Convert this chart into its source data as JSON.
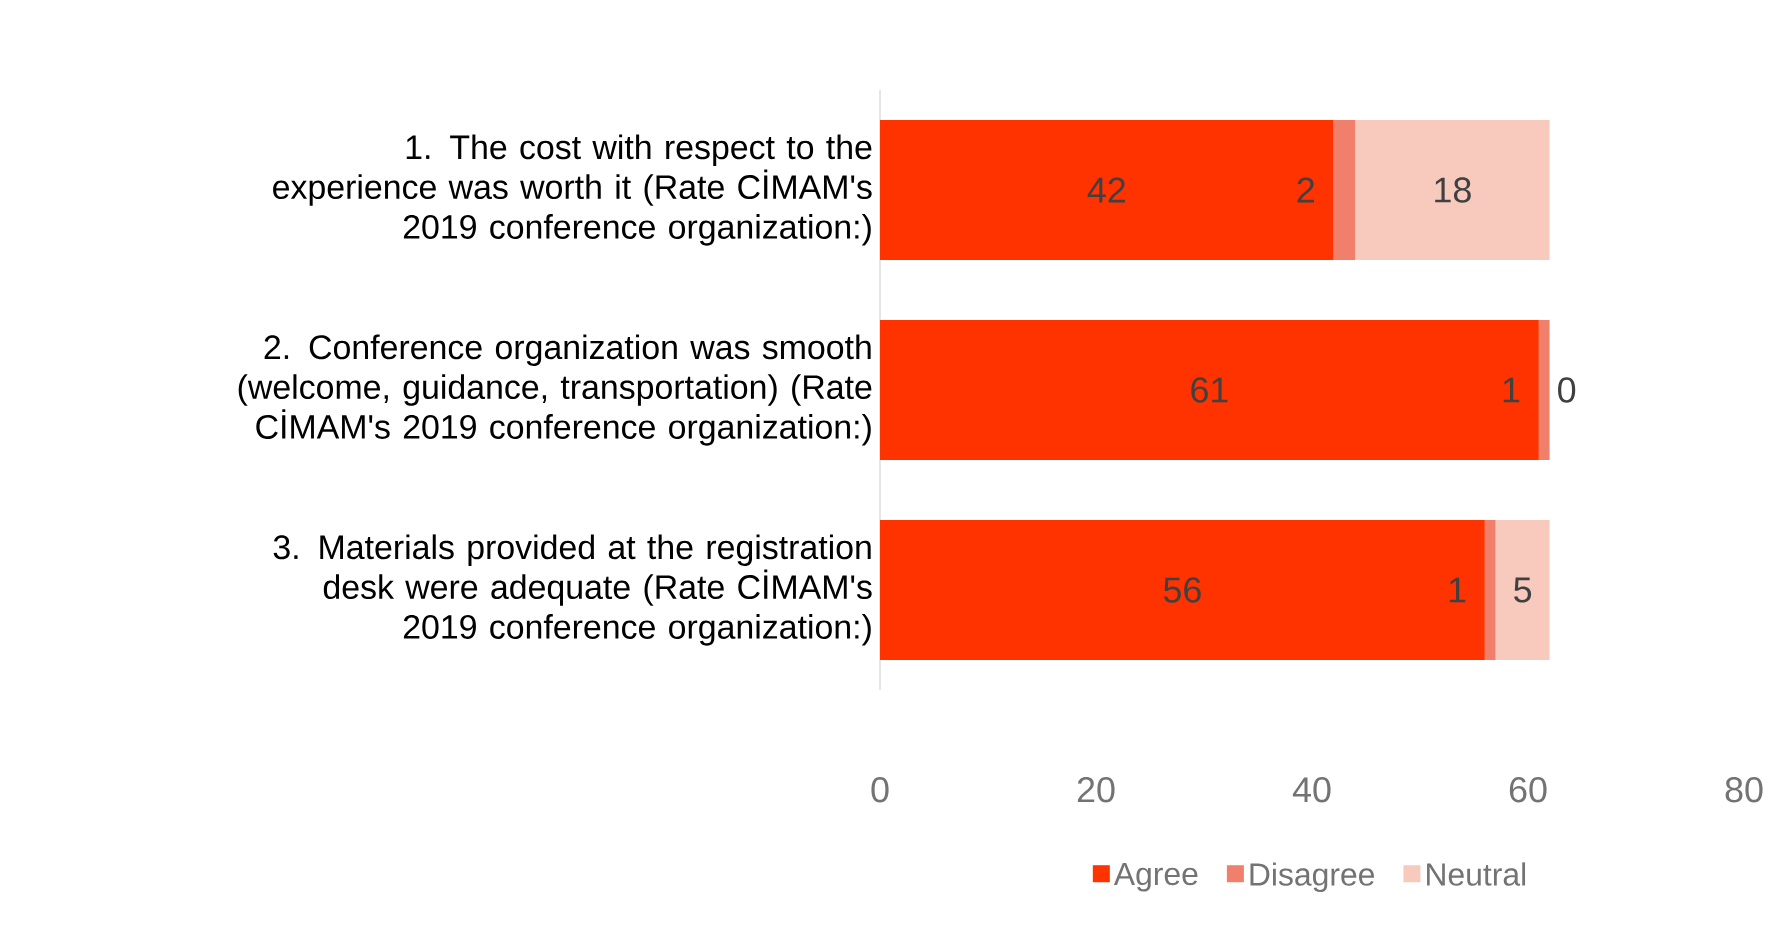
{
  "chart_data": {
    "type": "bar",
    "orientation": "horizontal",
    "stacked": true,
    "data_labels": true,
    "legend": "bottom",
    "grid": false,
    "categories": [
      "1. The cost with respect to the experience was worth it (Rate CİMAM's 2019 conference organization:)",
      "2. Conference organization was smooth (welcome, guidance, transportation) (Rate CİMAM's 2019 conference organization:)",
      "3. Materials provided at the registration desk were adequate (Rate CİMAM's 2019 conference organization:)"
    ],
    "series": [
      {
        "name": "Agree",
        "color": "#ff3300",
        "values": [
          42,
          61,
          56
        ]
      },
      {
        "name": "Disagree",
        "color": "#f0806c",
        "values": [
          2,
          1,
          1
        ]
      },
      {
        "name": "Neutral",
        "color": "#f8c9bd",
        "values": [
          18,
          0,
          5
        ]
      }
    ],
    "xlim": [
      0,
      80
    ],
    "xticks": [
      0,
      20,
      40,
      60,
      80
    ]
  }
}
